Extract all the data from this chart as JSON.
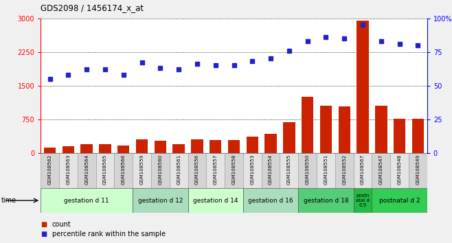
{
  "title": "GDS2098 / 1456174_x_at",
  "samples": [
    "GSM108562",
    "GSM108563",
    "GSM108564",
    "GSM108565",
    "GSM108566",
    "GSM108559",
    "GSM108560",
    "GSM108561",
    "GSM108556",
    "GSM108557",
    "GSM108558",
    "GSM108553",
    "GSM108554",
    "GSM108555",
    "GSM108550",
    "GSM108551",
    "GSM108552",
    "GSM108567",
    "GSM108547",
    "GSM108548",
    "GSM108549"
  ],
  "counts": [
    120,
    155,
    200,
    195,
    165,
    310,
    275,
    195,
    310,
    285,
    295,
    370,
    430,
    685,
    1250,
    1060,
    1040,
    2950,
    1060,
    760,
    760
  ],
  "percentiles": [
    55,
    58,
    62,
    62,
    58,
    67,
    63,
    62,
    66,
    65,
    65,
    68,
    70,
    76,
    83,
    86,
    85,
    95,
    83,
    81,
    80
  ],
  "groups": [
    {
      "label": "gestation d 11",
      "start": 0,
      "end": 5,
      "color": "#ccffcc"
    },
    {
      "label": "gestation d 12",
      "start": 5,
      "end": 8,
      "color": "#aaddbb"
    },
    {
      "label": "gestation d 14",
      "start": 8,
      "end": 11,
      "color": "#ccffcc"
    },
    {
      "label": "gestation d 16",
      "start": 11,
      "end": 14,
      "color": "#aaddbb"
    },
    {
      "label": "gestation d 18",
      "start": 14,
      "end": 17,
      "color": "#55cc77"
    },
    {
      "label": "postn\natal d\n0.5",
      "start": 17,
      "end": 18,
      "color": "#22bb44"
    },
    {
      "label": "postnatal d 2",
      "start": 18,
      "end": 21,
      "color": "#33cc55"
    }
  ],
  "bar_color": "#cc2200",
  "dot_color": "#2222cc",
  "left_ylim": [
    0,
    3000
  ],
  "right_ylim": [
    0,
    100
  ],
  "left_yticks": [
    0,
    750,
    1500,
    2250,
    3000
  ],
  "right_yticks": [
    0,
    25,
    50,
    75,
    100
  ],
  "bg_color": "#f0f0f0",
  "plot_bg": "#ffffff"
}
